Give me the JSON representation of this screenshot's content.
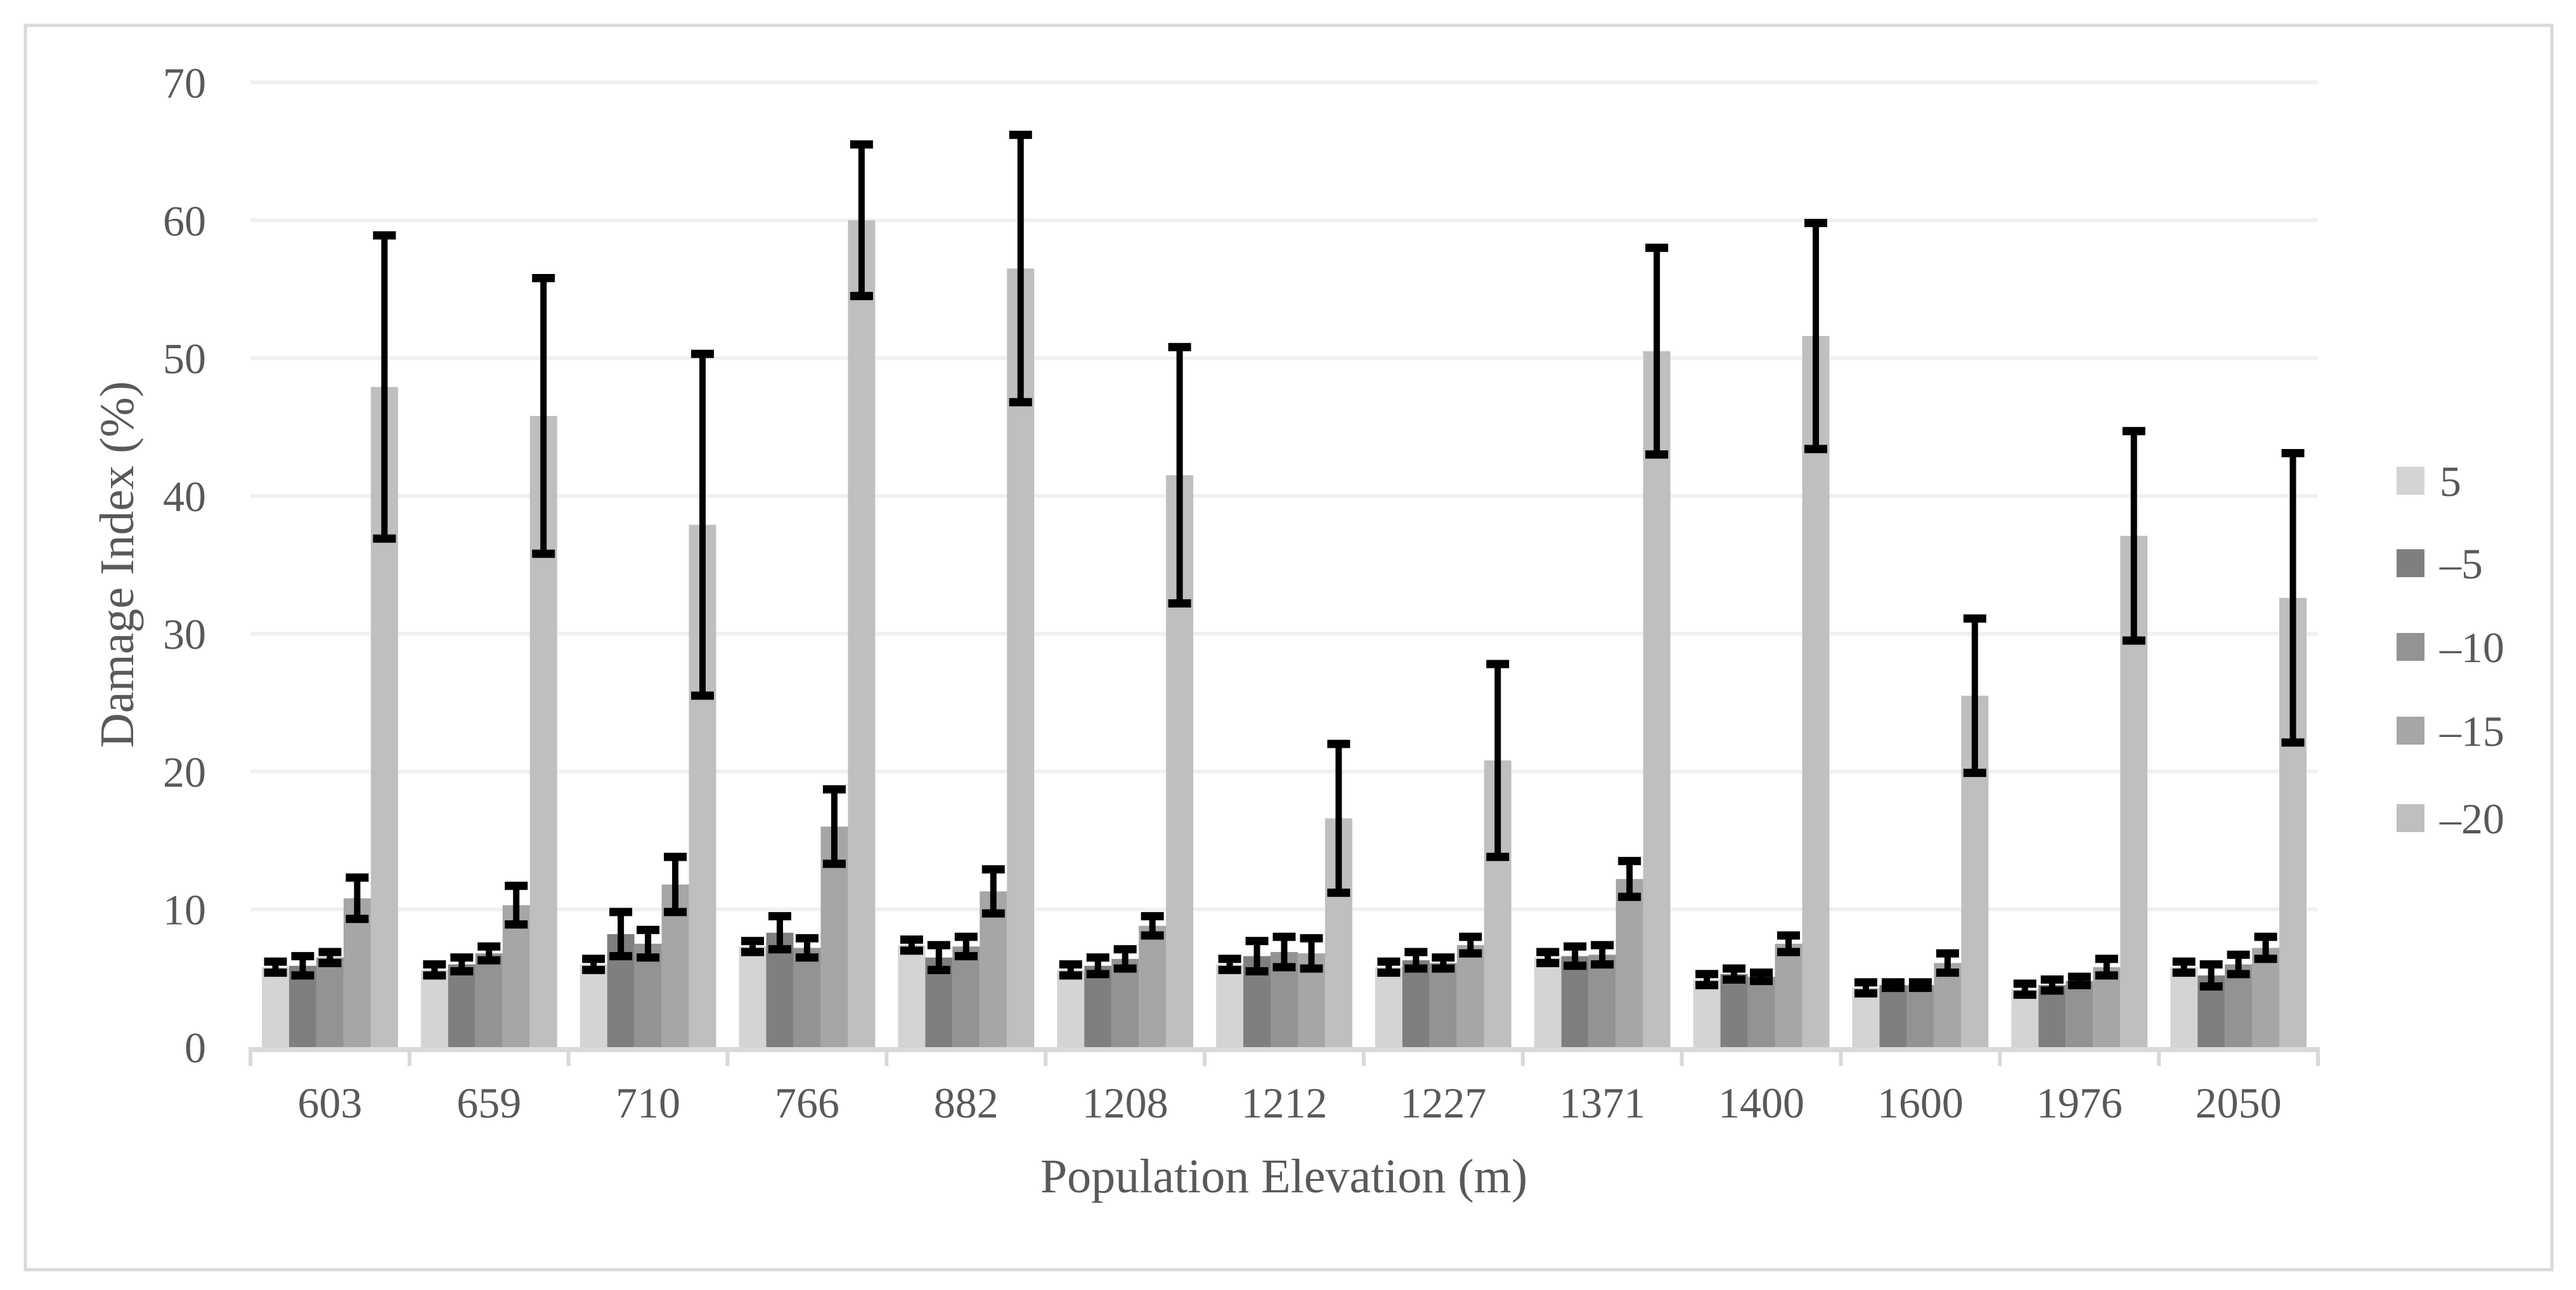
{
  "chart_data": {
    "type": "bar",
    "title": "",
    "xlabel": "Population Elevation (m)",
    "ylabel": "Damage Index (%)",
    "ylim": [
      0,
      70
    ],
    "yticks": [
      0,
      10,
      20,
      30,
      40,
      50,
      60,
      70
    ],
    "grid": true,
    "legend_position": "right",
    "categories": [
      "603",
      "659",
      "710",
      "766",
      "882",
      "1208",
      "1212",
      "1227",
      "1371",
      "1400",
      "1600",
      "1976",
      "2050"
    ],
    "series": [
      {
        "name": "5",
        "color": "#d4d4d4",
        "values": [
          5.8,
          5.6,
          6.0,
          7.3,
          7.4,
          5.6,
          6.0,
          5.8,
          6.5,
          4.9,
          4.3,
          4.2,
          5.8
        ],
        "errors": [
          0.4,
          0.4,
          0.4,
          0.4,
          0.4,
          0.4,
          0.4,
          0.4,
          0.4,
          0.4,
          0.4,
          0.4,
          0.4
        ]
      },
      {
        "name": "–5",
        "color": "#7f7f7f",
        "values": [
          5.9,
          6.0,
          8.2,
          8.3,
          6.5,
          5.9,
          6.6,
          6.3,
          6.6,
          5.3,
          4.5,
          4.5,
          5.2
        ],
        "errors": [
          0.7,
          0.5,
          1.6,
          1.2,
          0.9,
          0.6,
          1.1,
          0.6,
          0.7,
          0.4,
          0.2,
          0.4,
          0.8
        ]
      },
      {
        "name": "–10",
        "color": "#939393",
        "values": [
          6.5,
          6.8,
          7.5,
          7.2,
          7.3,
          6.4,
          6.9,
          6.1,
          6.7,
          5.1,
          4.5,
          4.8,
          6.0
        ],
        "errors": [
          0.4,
          0.5,
          1.0,
          0.7,
          0.7,
          0.7,
          1.1,
          0.4,
          0.7,
          0.3,
          0.2,
          0.3,
          0.7
        ]
      },
      {
        "name": "–15",
        "color": "#a6a6a6",
        "values": [
          10.8,
          10.3,
          11.8,
          16.0,
          11.3,
          8.8,
          6.8,
          7.4,
          12.2,
          7.5,
          6.1,
          5.8,
          7.2
        ],
        "errors": [
          1.5,
          1.4,
          2.0,
          2.7,
          1.6,
          0.7,
          1.1,
          0.6,
          1.3,
          0.6,
          0.7,
          0.6,
          0.8
        ]
      },
      {
        "name": "–20",
        "color": "#bfbfbf",
        "values": [
          47.9,
          45.8,
          37.9,
          60.0,
          56.5,
          41.5,
          16.6,
          20.8,
          50.5,
          51.6,
          25.5,
          37.1,
          32.6
        ],
        "errors": [
          11.0,
          10.0,
          12.4,
          5.5,
          9.7,
          9.3,
          5.4,
          7.0,
          7.5,
          8.2,
          5.6,
          7.6,
          10.5
        ]
      }
    ]
  }
}
